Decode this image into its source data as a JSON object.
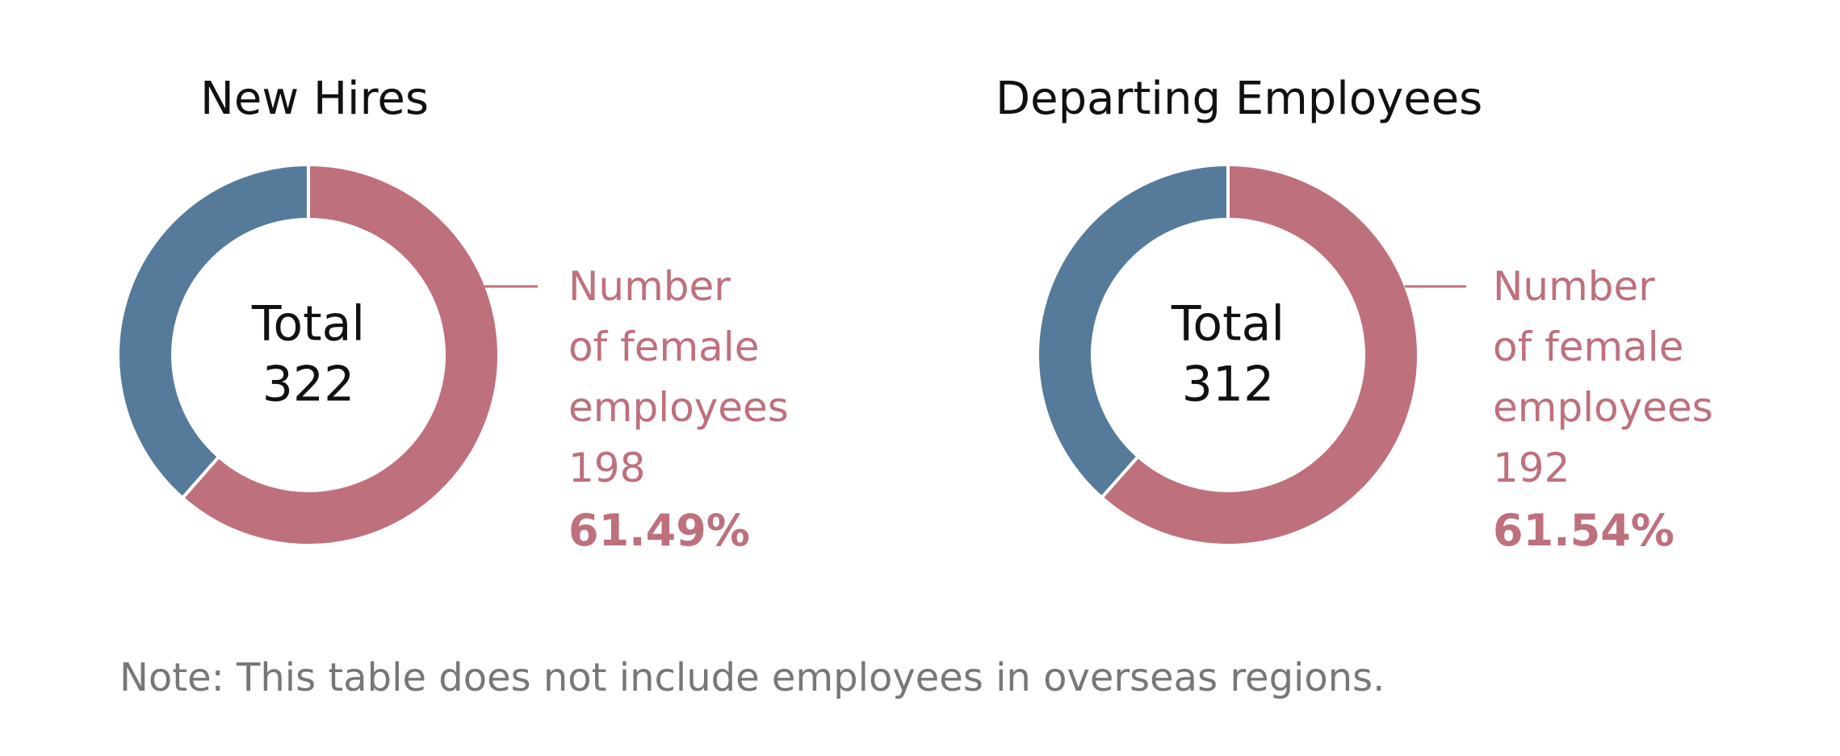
{
  "colors": {
    "female": "#be707c",
    "other": "#567b9a",
    "title": "#111111",
    "note": "#777777"
  },
  "chart_data": [
    {
      "type": "pie",
      "title": "New Hires",
      "center_label": [
        "Total",
        "322"
      ],
      "total": 322,
      "slices": [
        {
          "value": 198,
          "color": "#be707c"
        },
        {
          "value": 124,
          "color": "#567b9a"
        }
      ],
      "callout": {
        "lines": [
          "Number",
          "of female",
          "employees",
          "198"
        ],
        "percent": "61.49%"
      }
    },
    {
      "type": "pie",
      "title": "Departing Employees",
      "center_label": [
        "Total",
        "312"
      ],
      "total": 312,
      "slices": [
        {
          "value": 192,
          "color": "#be707c"
        },
        {
          "value": 120,
          "color": "#567b9a"
        }
      ],
      "callout": {
        "lines": [
          "Number",
          "of female",
          "employees",
          "192"
        ],
        "percent": "61.54%"
      }
    }
  ],
  "note": "Note: This table does not include employees in overseas regions."
}
